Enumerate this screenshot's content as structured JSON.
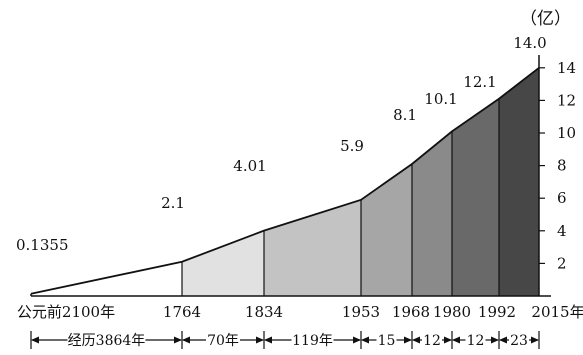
{
  "chart_data": {
    "type": "area",
    "unit": "（亿）",
    "x": [
      "公元前2100年",
      "1764",
      "1834",
      "1953",
      "1968",
      "1980",
      "1992",
      "2015年"
    ],
    "values": [
      0.1355,
      2.1,
      4.01,
      5.9,
      8.1,
      10.1,
      12.1,
      14.0
    ],
    "value_labels": [
      "0.1355",
      "2.1",
      "4.01",
      "5.9",
      "8.1",
      "10.1",
      "12.1",
      "14.0"
    ],
    "segment_fill_colors": [
      "#ffffff",
      "#e1e1e1",
      "#c3c3c3",
      "#a6a6a6",
      "#8a8a8a",
      "#696969",
      "#474747",
      "#1c1c1c"
    ],
    "y_ticks": [
      2,
      4,
      6,
      8,
      10,
      12,
      14
    ],
    "ylim": [
      0,
      15
    ],
    "y_axis_side": "right",
    "grid": false,
    "legend": "none",
    "durations": [
      "经历3864年",
      "70年",
      "119年",
      "15",
      "12",
      "12",
      "23"
    ]
  }
}
